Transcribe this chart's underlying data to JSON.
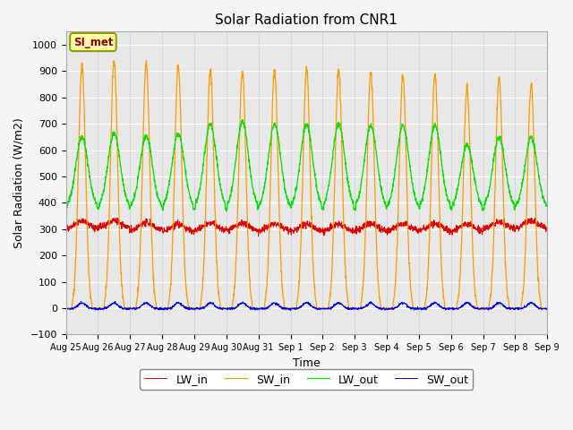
{
  "title": "Solar Radiation from CNR1",
  "xlabel": "Time",
  "ylabel": "Solar Radiation (W/m2)",
  "ylim": [
    -100,
    1050
  ],
  "yticks": [
    -100,
    0,
    100,
    200,
    300,
    400,
    500,
    600,
    700,
    800,
    900,
    1000
  ],
  "annotation_label": "SI_met",
  "legend_labels": [
    "LW_in",
    "SW_in",
    "LW_out",
    "SW_out"
  ],
  "line_colors": [
    "#dd0000",
    "#ff9900",
    "#00dd00",
    "#0000dd"
  ],
  "background_color": "#e8e8e8",
  "grid_color": "#ffffff",
  "xticklabels": [
    "Aug 25",
    "Aug 26",
    "Aug 27",
    "Aug 28",
    "Aug 29",
    "Aug 30",
    "Aug 31",
    "Sep 1",
    "Sep 2",
    "Sep 3",
    "Sep 4",
    "Sep 5",
    "Sep 6",
    "Sep 7",
    "Sep 8",
    "Sep 9"
  ],
  "n_days": 15,
  "points_per_day": 144,
  "sw_in_peaks": [
    920,
    935,
    930,
    920,
    905,
    900,
    905,
    910,
    905,
    900,
    885,
    885,
    840,
    875,
    850
  ],
  "lw_out_peaks": [
    650,
    665,
    655,
    660,
    700,
    710,
    700,
    695,
    700,
    695,
    695,
    695,
    620,
    650,
    650
  ],
  "lw_in_base": 290,
  "lw_out_base": 380,
  "figsize": [
    6.4,
    4.8
  ],
  "dpi": 100
}
